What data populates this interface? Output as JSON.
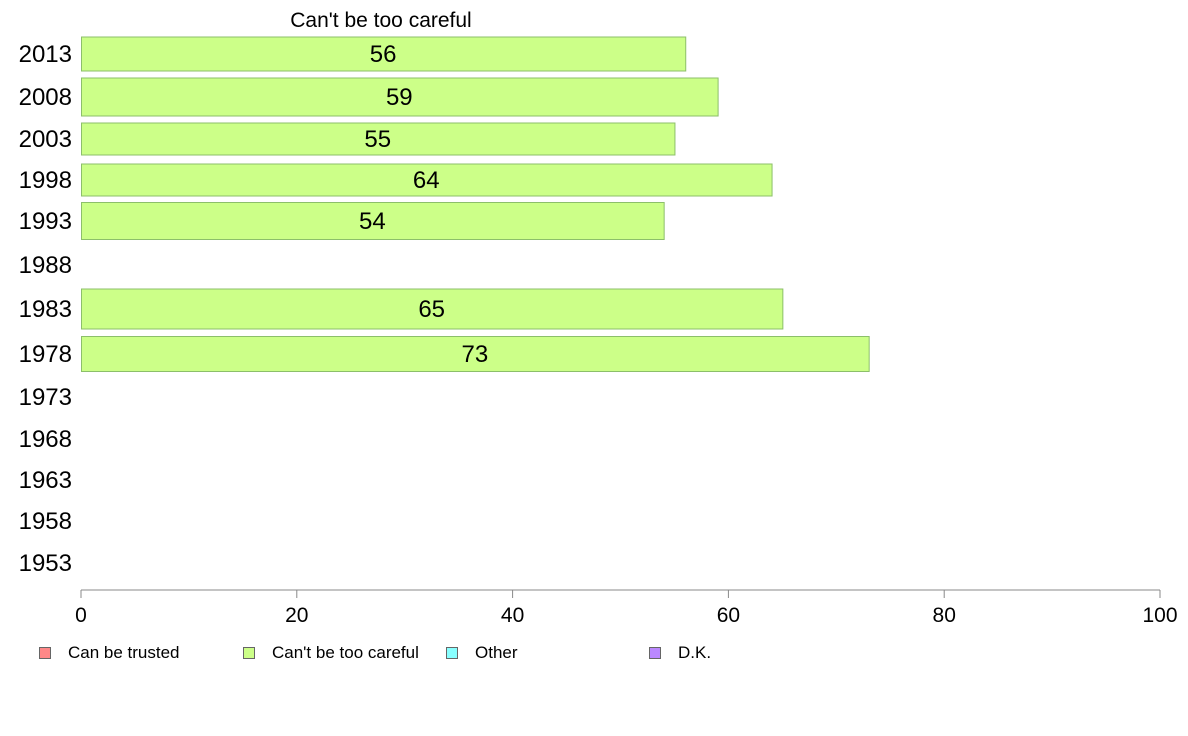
{
  "chart_data": {
    "type": "bar",
    "orientation": "horizontal",
    "title": "Can't be too careful",
    "categories": [
      "2013",
      "2008",
      "2003",
      "1998",
      "1993",
      "1988",
      "1983",
      "1978",
      "1973",
      "1968",
      "1963",
      "1958",
      "1953"
    ],
    "series": [
      {
        "name": "Can't be too careful",
        "color": "#ccff88",
        "values": [
          56,
          59,
          55,
          64,
          54,
          null,
          65,
          73,
          null,
          null,
          null,
          null,
          null
        ]
      }
    ],
    "xlim": [
      0,
      100
    ],
    "xticks": [
      0,
      20,
      40,
      60,
      80,
      100
    ],
    "xlabel": "",
    "ylabel": "",
    "grid": false,
    "legend_position": "bottom",
    "legend": [
      {
        "label": "Can be trusted",
        "color": "#ff8888"
      },
      {
        "label": "Can't be too careful",
        "color": "#ccff88"
      },
      {
        "label": "Other",
        "color": "#88ffff"
      },
      {
        "label": "D.K.",
        "color": "#bb88ff"
      }
    ]
  }
}
